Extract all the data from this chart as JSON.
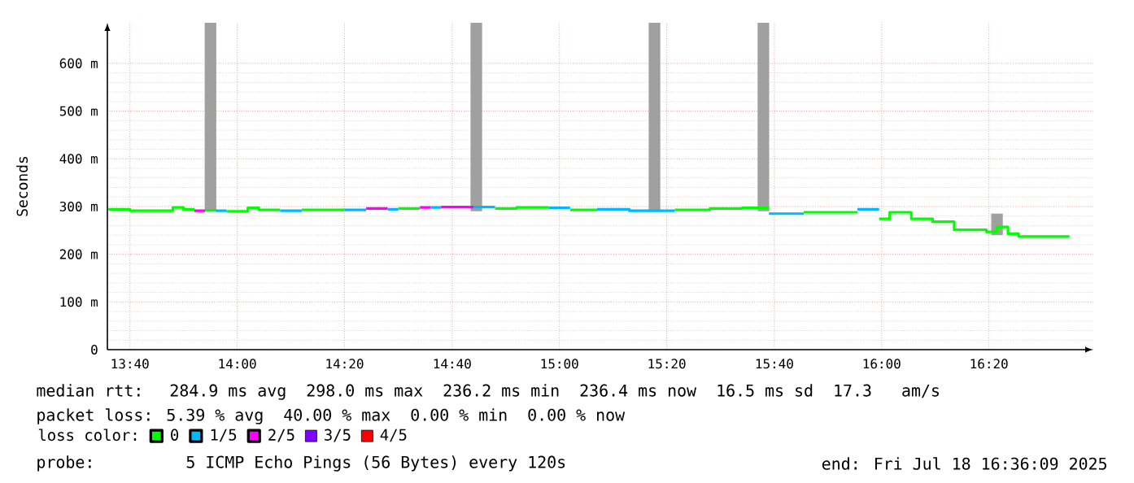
{
  "chart_data": {
    "type": "line",
    "ylabel": "Seconds",
    "series": [
      {
        "name": "0",
        "color": "#00ff00",
        "x": [
          13.6,
          13.667,
          13.667,
          13.8,
          13.8,
          13.833,
          13.833,
          13.867,
          13.9,
          13.933,
          13.967,
          14.033,
          14.033,
          14.067,
          14.067,
          14.133,
          14.2,
          14.333,
          14.5,
          14.567,
          14.8,
          14.867,
          14.867,
          14.967,
          15.033,
          15.117,
          15.358,
          15.467,
          15.467,
          15.567,
          15.567,
          15.65,
          15.758,
          15.925,
          15.992,
          16.025,
          16.025,
          16.092,
          16.092,
          16.158,
          16.158,
          16.225,
          16.225,
          16.325,
          16.325,
          16.358,
          16.358,
          16.392,
          16.392,
          16.425,
          16.425,
          16.583
        ],
        "values": [
          294,
          294,
          291,
          291,
          298,
          298,
          294,
          294,
          292,
          292,
          290,
          290,
          297,
          297,
          293,
          293,
          293,
          293,
          296,
          296,
          296,
          296,
          298,
          298,
          293,
          293,
          293,
          293,
          296,
          296,
          297,
          297,
          288,
          288,
          274,
          274,
          288,
          288,
          274,
          274,
          268,
          268,
          251,
          251,
          247,
          247,
          257,
          257,
          243,
          243,
          237,
          237
        ]
      },
      {
        "name": "1/5",
        "color": "#00b8ff",
        "x": [
          13.933,
          13.967,
          14.133,
          14.2,
          14.333,
          14.4,
          14.467,
          14.5,
          14.6,
          14.633,
          14.733,
          14.8,
          14.967,
          15.033,
          15.117,
          15.217,
          15.217,
          15.358,
          15.65,
          15.758,
          15.925,
          15.992
        ],
        "values": [
          291,
          291,
          291,
          291,
          293,
          293,
          294,
          294,
          298,
          298,
          299,
          299,
          297,
          297,
          294,
          294,
          291,
          291,
          285,
          285,
          294,
          294
        ]
      },
      {
        "name": "2/5",
        "color": "#ff00ff",
        "x": [
          13.867,
          13.9,
          14.4,
          14.467,
          14.567,
          14.6,
          14.633,
          14.733
        ],
        "values": [
          291,
          291,
          296,
          296,
          298,
          298,
          299,
          299
        ]
      },
      {
        "name": "3/5",
        "color": "#7e00ff"
      },
      {
        "name": "4/5",
        "color": "#ff0000"
      },
      {
        "type": "bar",
        "color": "#a0a0a0",
        "x": [
          13.917,
          14.742,
          15.295,
          15.633,
          16.358
        ],
        "base": [
          290,
          290,
          290,
          290,
          240
        ],
        "values": [
          395,
          395,
          395,
          395,
          45
        ]
      }
    ],
    "xlim": [
      13.597,
      16.657
    ],
    "ylim": [
      0,
      685
    ],
    "xticks": [
      {
        "value": 13.667,
        "label": "13:40"
      },
      {
        "value": 14,
        "label": "14:00"
      },
      {
        "value": 14.333,
        "label": "14:20"
      },
      {
        "value": 14.667,
        "label": "14:40"
      },
      {
        "value": 15,
        "label": "15:00"
      },
      {
        "value": 15.333,
        "label": "15:20"
      },
      {
        "value": 15.667,
        "label": "15:40"
      },
      {
        "value": 16,
        "label": "16:00"
      },
      {
        "value": 16.333,
        "label": "16:20"
      }
    ],
    "yticks": [
      0,
      {
        "value": 100,
        "label": "100 m"
      },
      {
        "value": 200,
        "label": "200 m"
      },
      {
        "value": 300,
        "label": "300 m"
      },
      {
        "value": 400,
        "label": "400 m"
      },
      {
        "value": 500,
        "label": "500 m"
      },
      {
        "value": 600,
        "label": "600 m"
      }
    ],
    "grid": true,
    "legend": "bottom",
    "legend_title": "loss color:",
    "annotations": [
      "median rtt:  284.9 ms avg  298.0 ms max  236.2 ms min  236.4 ms now  16.5 ms sd  17.3   am/s",
      "packet loss: 5.39 % avg  40.00 % max  0.00 % min  0.00 % now",
      "probe:       5 ICMP Echo Pings (56 Bytes) every 120s",
      "end: Fri Jul 18 16:36:09 2025"
    ]
  }
}
